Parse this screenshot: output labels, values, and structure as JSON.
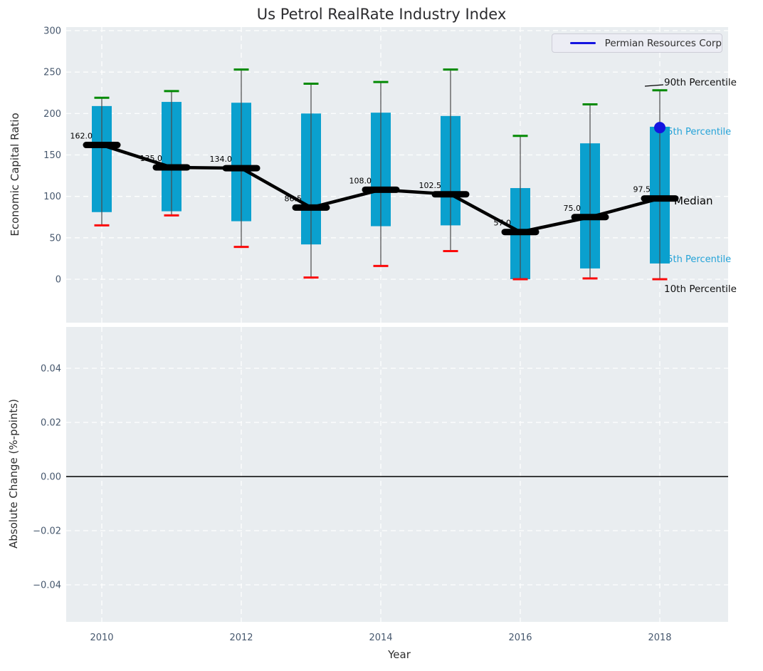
{
  "chart": {
    "title": "Us Petrol RealRate Industry Index",
    "xlabel": "Year",
    "top_axis": {
      "ylabel": "Economic Capital Ratio"
    },
    "bottom_axis": {
      "ylabel": "Absolute Change (%-points)"
    },
    "legend": {
      "label": "Permian Resources Corp"
    },
    "annotations": {
      "p90": "90th Percentile",
      "p75": "75th Percentile",
      "median": "Median",
      "p25": "25th Percentile",
      "p10": "10th Percentile"
    }
  },
  "chart_data": {
    "type": "boxplot-with-median-line",
    "title": "Us Petrol RealRate Industry Index",
    "xlabel": "Year",
    "ylabel_top": "Economic Capital Ratio",
    "ylabel_bottom": "Absolute Change (%-points)",
    "x": [
      2010,
      2011,
      2012,
      2013,
      2014,
      2015,
      2016,
      2017,
      2018
    ],
    "xtick_labels": [
      "2010",
      "2012",
      "2014",
      "2016",
      "2018"
    ],
    "xticks": [
      2010,
      2012,
      2014,
      2016,
      2018
    ],
    "top_yticks": [
      0,
      50,
      100,
      150,
      200,
      250,
      300
    ],
    "top_ylim": [
      -52,
      304
    ],
    "bottom_yticks": [
      {
        "label": "0.04",
        "v": 0.04
      },
      {
        "label": "0.02",
        "v": 0.02
      },
      {
        "label": "0.00",
        "v": 0.0
      },
      {
        "label": "−0.02",
        "v": -0.02
      },
      {
        "label": "−0.04",
        "v": -0.04
      }
    ],
    "bottom_ylim": [
      -0.055,
      0.055
    ],
    "grid": "white-dashed",
    "legend_position": "upper right",
    "series": [
      {
        "name": "90th Percentile",
        "values": [
          219,
          227,
          253,
          236,
          238,
          253,
          173,
          211,
          228
        ]
      },
      {
        "name": "75th Percentile",
        "values": [
          209,
          214,
          213,
          200,
          201,
          197,
          110,
          164,
          184
        ]
      },
      {
        "name": "Median",
        "values": [
          162.0,
          135.0,
          134.0,
          86.5,
          108.0,
          102.5,
          57.0,
          75.0,
          97.5
        ]
      },
      {
        "name": "25th Percentile",
        "values": [
          81,
          82,
          70,
          42,
          64,
          65,
          0,
          13,
          19
        ]
      },
      {
        "name": "10th Percentile",
        "values": [
          65,
          77,
          39,
          2,
          16,
          34,
          0,
          1,
          0
        ]
      }
    ],
    "median_labels": [
      "162.0",
      "135.0",
      "134.0",
      "86.5",
      "108.0",
      "102.5",
      "57.0",
      "75.0",
      "97.5"
    ],
    "company_point": {
      "name": "Permian Resources Corp",
      "year": 2018,
      "value": 183
    },
    "bottom_zero_line": 0.0
  },
  "colors": {
    "plot_bg": "#e9edf0",
    "grid": "#ffffff",
    "box_fill": "#0aa0ce",
    "whisker": "#4a4a4a",
    "cap_high": "#038a03",
    "cap_low": "#fb0a0a",
    "median": "#000000",
    "company": "#1414e0",
    "tick_text": "#47586e",
    "cyan_label": "#25a3d8",
    "zero_line": "#000000"
  }
}
